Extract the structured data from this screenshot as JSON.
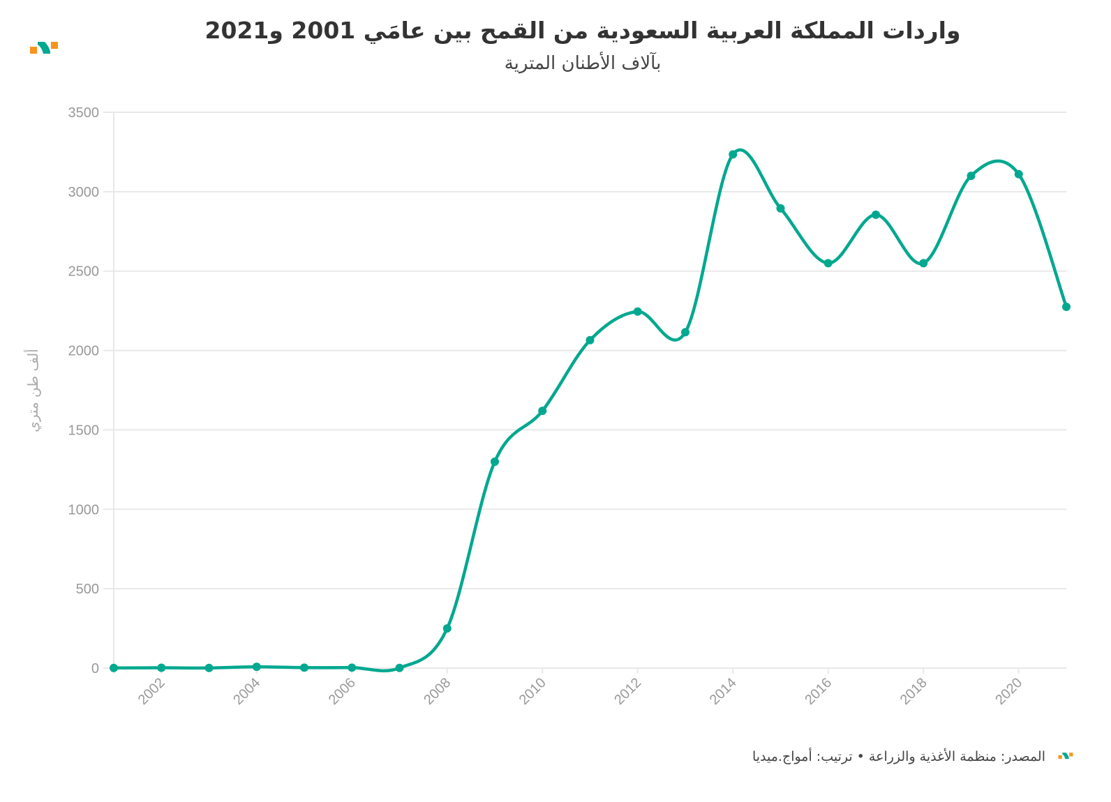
{
  "header": {
    "title": "واردات المملكة العربية السعودية من القمح بين عامَي 2001 و2021",
    "subtitle": "بآلاف الأطنان المترية"
  },
  "footer": {
    "source": "المصدر: منظمة الأغذية والزراعة • ترتيب: أمواج.ميديا"
  },
  "brand": {
    "logo": "Amwaj.media",
    "orange": "#f7941d",
    "teal": "#00a88f"
  },
  "chart_data": {
    "type": "line",
    "title": "واردات المملكة العربية السعودية من القمح بين عامَي 2001 و2021",
    "subtitle": "بآلاف الأطنان المترية",
    "ylabel": "ألف طن متري",
    "xlabel": "",
    "x": [
      2001,
      2002,
      2003,
      2004,
      2005,
      2006,
      2007,
      2008,
      2009,
      2010,
      2011,
      2012,
      2013,
      2014,
      2015,
      2016,
      2017,
      2018,
      2019,
      2020,
      2021
    ],
    "series": [
      {
        "name": "واردات القمح",
        "color": "#00a88f",
        "values": [
          1,
          2,
          1,
          8,
          3,
          3,
          1,
          250,
          1300,
          1620,
          2065,
          2245,
          2115,
          3235,
          2895,
          2550,
          2855,
          2550,
          3100,
          3110,
          2275
        ]
      }
    ],
    "xlim": [
      2001,
      2021
    ],
    "ylim": [
      0,
      3500
    ],
    "xticks": [
      "2002",
      "2004",
      "2006",
      "2008",
      "2010",
      "2012",
      "2014",
      "2016",
      "2018",
      "2020"
    ],
    "yticks": [
      "0",
      "500",
      "1000",
      "1500",
      "2000",
      "2500",
      "3000",
      "3500"
    ],
    "grid": true,
    "legend": "none"
  }
}
